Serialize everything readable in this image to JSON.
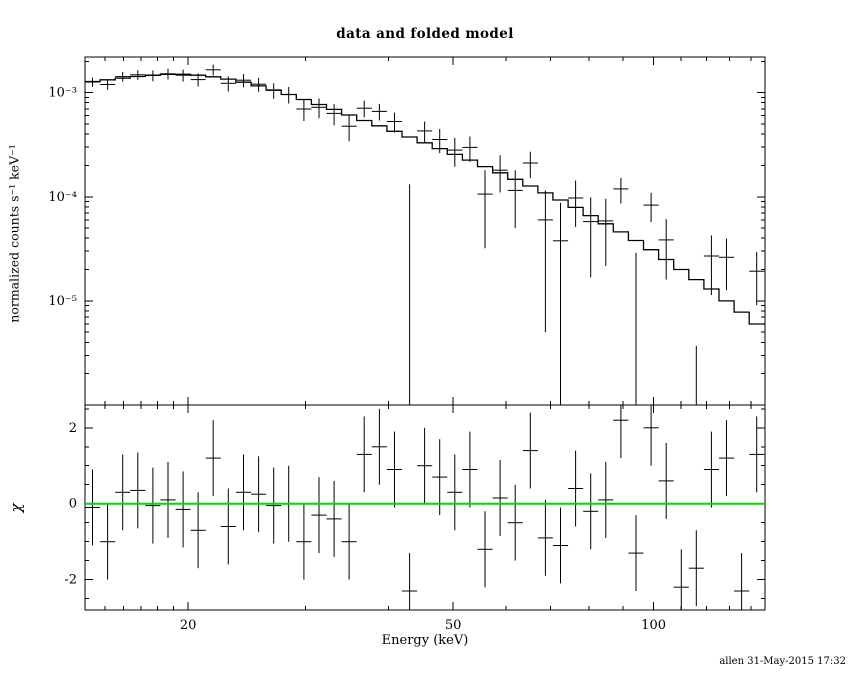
{
  "footer": "allen 31-May-2015 17:32",
  "chart_data": {
    "type": "scatter",
    "title": "data and folded model",
    "xlabel": "Energy (keV)",
    "xscale": "log",
    "xlim": [
      14,
      147
    ],
    "x_major_ticks": [
      20,
      50,
      100
    ],
    "x_major_labels": [
      "20",
      "50",
      "100"
    ],
    "x_minor_ticks": [
      15,
      16,
      17,
      18,
      19,
      30,
      40,
      60,
      70,
      80,
      90,
      110,
      120,
      130,
      140
    ],
    "grid": false,
    "legend": "none",
    "colors": {
      "data": "#000000",
      "model": "#000000",
      "zero_line": "#00d900"
    },
    "panels": [
      {
        "name": "spectrum",
        "ylabel": "normalized counts s⁻¹ keV⁻¹",
        "yscale": "log",
        "ylim": [
          1e-06,
          0.0022
        ],
        "y_major_ticks": [
          1e-05,
          0.0001,
          0.001
        ],
        "y_major_labels": [
          "10⁻⁵",
          "10⁻⁴",
          "10⁻³"
        ],
        "bin_edges": [
          14.0,
          14.75,
          15.54,
          16.37,
          17.25,
          18.17,
          19.15,
          20.17,
          21.25,
          22.39,
          23.59,
          24.86,
          26.19,
          27.59,
          29.07,
          30.63,
          32.27,
          34.0,
          35.82,
          37.74,
          39.77,
          41.9,
          44.14,
          46.51,
          49.0,
          51.63,
          54.39,
          57.31,
          60.38,
          63.61,
          67.02,
          70.61,
          74.4,
          78.38,
          82.58,
          87.01,
          91.67,
          96.58,
          101.75,
          107.21,
          112.95,
          119.0,
          125.38,
          132.1,
          139.17,
          146.63
        ],
        "model": [
          0.00128,
          0.00133,
          0.00138,
          0.00143,
          0.00147,
          0.0015,
          0.0015,
          0.00147,
          0.00142,
          0.00135,
          0.00126,
          0.00116,
          0.00106,
          0.00096,
          0.00086,
          0.00077,
          0.00069,
          0.00061,
          0.00054,
          0.00048,
          0.000425,
          0.000375,
          0.00033,
          0.00029,
          0.000255,
          0.000225,
          0.000195,
          0.00017,
          0.000147,
          0.000127,
          0.000109,
          9.3e-05,
          7.9e-05,
          6.6e-05,
          5.5e-05,
          4.6e-05,
          3.8e-05,
          3.1e-05,
          2.5e-05,
          2e-05,
          1.6e-05,
          1.3e-05,
          1e-05,
          7.8e-06,
          6e-06
        ],
        "data": [
          0.001267,
          0.001197,
          0.001426,
          0.001485,
          0.001461,
          0.001518,
          0.001471,
          0.001336,
          0.001659,
          0.001229,
          0.001317,
          0.001206,
          0.001051,
          0.00096,
          0.000697,
          0.000724,
          0.000632,
          0.000476,
          0.000709,
          0.00066,
          0.000528,
          -5.6e-05,
          0.000429,
          0.000355,
          0.000281,
          0.000298,
          0.000106,
          0.00018,
          0.000115,
          0.000211,
          6e-05,
          3.78e-05,
          9.73e-05,
          5.78e-05,
          5.87e-05,
          0.0001189,
          -5e-07,
          8.31e-05,
          3.85e-05,
          -2.4e-05,
          -1.39e-05,
          2.7e-05,
          2.62e-05,
          -1.91e-05,
          1.93e-05
        ],
        "error": [
          0.000128,
          0.000133,
          0.000152,
          0.000157,
          0.000176,
          0.00018,
          0.000195,
          0.000191,
          0.000199,
          0.000203,
          0.000189,
          0.000186,
          0.00018,
          0.000173,
          0.000163,
          0.000154,
          0.000145,
          0.000134,
          0.00013,
          0.00012,
          0.000115,
          0.000188,
          9.9e-05,
          9.3e-05,
          8.7e-05,
          8.1e-05,
          7.4e-05,
          7e-05,
          6.5e-05,
          6e-05,
          5.5e-05,
          5e-05,
          4.6e-05,
          4.1e-05,
          3.7e-05,
          3.3e-05,
          2.96e-05,
          2.6e-05,
          2.25e-05,
          2e-05,
          1.76e-05,
          1.56e-05,
          1.35e-05,
          1.17e-05,
          1.02e-05
        ]
      },
      {
        "name": "residuals",
        "ylabel": "χ",
        "yscale": "linear",
        "ylim": [
          -2.8,
          2.6
        ],
        "y_major_ticks": [
          -2,
          0,
          2
        ],
        "y_major_labels": [
          "-2",
          "0",
          "2"
        ],
        "y_minor_ticks": [
          -2.5,
          -1.5,
          -1,
          -0.5,
          0.5,
          1,
          1.5,
          2.5
        ],
        "chi": [
          -0.1,
          -1.0,
          0.3,
          0.35,
          -0.05,
          0.1,
          -0.15,
          -0.7,
          1.2,
          -0.6,
          0.3,
          0.25,
          -0.05,
          0.0,
          -1.0,
          -0.3,
          -0.4,
          -1.0,
          1.3,
          1.5,
          0.9,
          -2.3,
          1.0,
          0.7,
          0.3,
          0.9,
          -1.2,
          0.15,
          -0.5,
          1.4,
          -0.9,
          -1.1,
          0.4,
          -0.2,
          0.1,
          2.2,
          -1.3,
          2.0,
          0.6,
          -2.2,
          -1.7,
          0.9,
          1.2,
          -2.3,
          1.3
        ],
        "chi_error": 1
      }
    ]
  }
}
